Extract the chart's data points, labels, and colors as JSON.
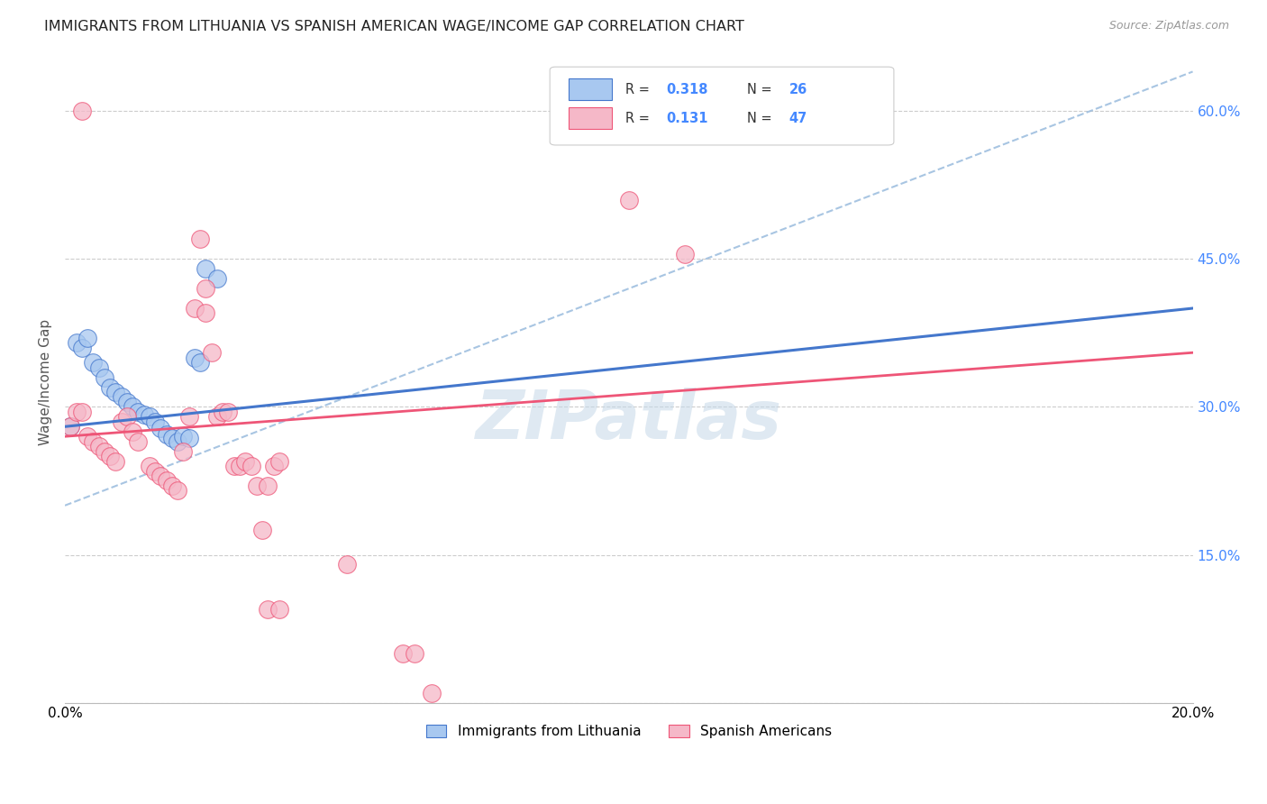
{
  "title": "IMMIGRANTS FROM LITHUANIA VS SPANISH AMERICAN WAGE/INCOME GAP CORRELATION CHART",
  "source": "Source: ZipAtlas.com",
  "ylabel": "Wage/Income Gap",
  "x_min": 0.0,
  "x_max": 0.2,
  "y_min": 0.0,
  "y_max": 0.65,
  "x_ticks": [
    0.0,
    0.04,
    0.08,
    0.12,
    0.16,
    0.2
  ],
  "y_ticks_right": [
    0.0,
    0.15,
    0.3,
    0.45,
    0.6
  ],
  "y_tick_labels_right": [
    "",
    "15.0%",
    "30.0%",
    "45.0%",
    "60.0%"
  ],
  "r_lithuania": 0.318,
  "n_lithuania": 26,
  "r_spanish": 0.131,
  "n_spanish": 47,
  "color_lithuania": "#a8c8f0",
  "color_spanish": "#f5b8c8",
  "line_color_lithuania": "#4477cc",
  "line_color_spanish": "#ee5577",
  "line_color_dashed": "#99bbdd",
  "watermark": "ZIPatlas",
  "lith_line": [
    0.0,
    0.28,
    0.2,
    0.4
  ],
  "span_line": [
    0.0,
    0.27,
    0.2,
    0.355
  ],
  "dash_line": [
    0.0,
    0.2,
    0.2,
    0.64
  ],
  "lithuania_points": [
    [
      0.002,
      0.365
    ],
    [
      0.003,
      0.36
    ],
    [
      0.004,
      0.37
    ],
    [
      0.005,
      0.345
    ],
    [
      0.006,
      0.34
    ],
    [
      0.007,
      0.33
    ],
    [
      0.008,
      0.32
    ],
    [
      0.009,
      0.315
    ],
    [
      0.01,
      0.31
    ],
    [
      0.011,
      0.305
    ],
    [
      0.012,
      0.3
    ],
    [
      0.013,
      0.295
    ],
    [
      0.014,
      0.292
    ],
    [
      0.015,
      0.29
    ],
    [
      0.016,
      0.285
    ],
    [
      0.017,
      0.278
    ],
    [
      0.018,
      0.272
    ],
    [
      0.019,
      0.268
    ],
    [
      0.02,
      0.265
    ],
    [
      0.021,
      0.27
    ],
    [
      0.022,
      0.268
    ],
    [
      0.023,
      0.35
    ],
    [
      0.024,
      0.345
    ],
    [
      0.025,
      0.44
    ],
    [
      0.027,
      0.43
    ],
    [
      0.001,
      0.28
    ]
  ],
  "spanish_points": [
    [
      0.001,
      0.28
    ],
    [
      0.002,
      0.295
    ],
    [
      0.003,
      0.295
    ],
    [
      0.004,
      0.27
    ],
    [
      0.005,
      0.265
    ],
    [
      0.006,
      0.26
    ],
    [
      0.007,
      0.255
    ],
    [
      0.008,
      0.25
    ],
    [
      0.009,
      0.245
    ],
    [
      0.01,
      0.285
    ],
    [
      0.011,
      0.29
    ],
    [
      0.012,
      0.275
    ],
    [
      0.013,
      0.265
    ],
    [
      0.015,
      0.24
    ],
    [
      0.016,
      0.235
    ],
    [
      0.017,
      0.23
    ],
    [
      0.018,
      0.225
    ],
    [
      0.019,
      0.22
    ],
    [
      0.02,
      0.215
    ],
    [
      0.021,
      0.255
    ],
    [
      0.022,
      0.29
    ],
    [
      0.023,
      0.4
    ],
    [
      0.024,
      0.47
    ],
    [
      0.025,
      0.42
    ],
    [
      0.025,
      0.395
    ],
    [
      0.026,
      0.355
    ],
    [
      0.027,
      0.29
    ],
    [
      0.028,
      0.295
    ],
    [
      0.029,
      0.295
    ],
    [
      0.03,
      0.24
    ],
    [
      0.031,
      0.24
    ],
    [
      0.032,
      0.245
    ],
    [
      0.033,
      0.24
    ],
    [
      0.034,
      0.22
    ],
    [
      0.036,
      0.22
    ],
    [
      0.037,
      0.24
    ],
    [
      0.038,
      0.245
    ],
    [
      0.035,
      0.175
    ],
    [
      0.036,
      0.095
    ],
    [
      0.038,
      0.095
    ],
    [
      0.05,
      0.14
    ],
    [
      0.06,
      0.05
    ],
    [
      0.062,
      0.05
    ],
    [
      0.065,
      0.01
    ],
    [
      0.1,
      0.51
    ],
    [
      0.11,
      0.455
    ],
    [
      0.003,
      0.6
    ]
  ]
}
